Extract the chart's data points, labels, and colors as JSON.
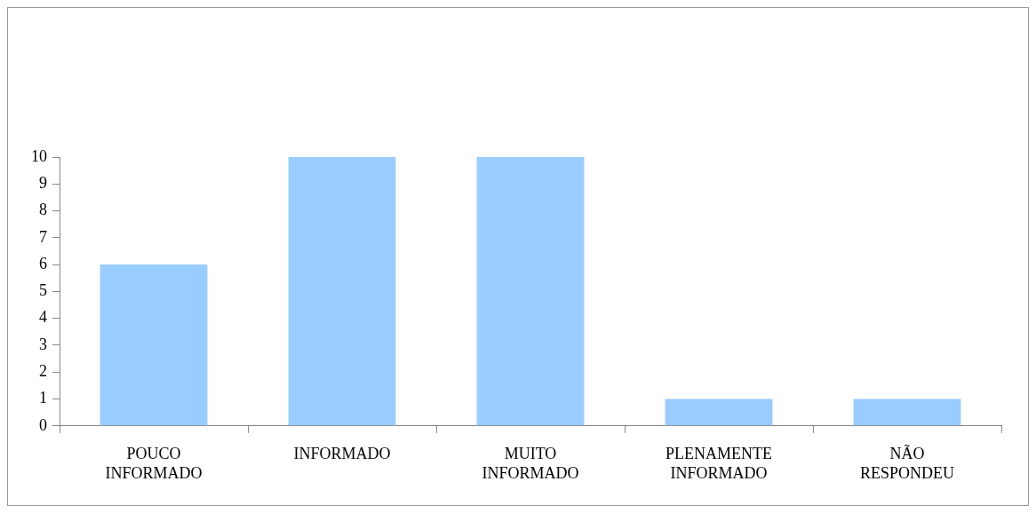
{
  "chart_data": {
    "type": "bar",
    "categories": [
      "POUCO INFORMADO",
      "INFORMADO",
      "MUITO INFORMADO",
      "PLENAMENTE INFORMADO",
      "NÃO RESPONDEU"
    ],
    "values": [
      6,
      10,
      10,
      1,
      1
    ],
    "color": "#99ccff",
    "ylim": [
      0,
      10
    ],
    "yticks": [
      0,
      1,
      2,
      3,
      4,
      5,
      6,
      7,
      8,
      9,
      10
    ],
    "grid": false,
    "legend": false
  }
}
